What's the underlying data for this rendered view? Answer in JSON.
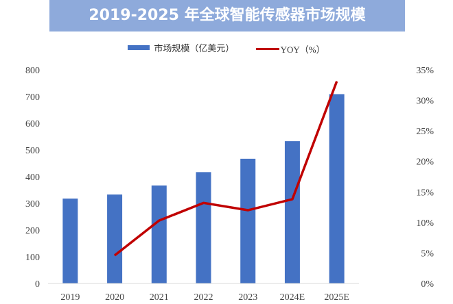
{
  "chart_data": {
    "type": "bar+line",
    "title": "2019-2025 年全球智能传感器市场规模",
    "categories": [
      "2019",
      "2020",
      "2021",
      "2022",
      "2023",
      "2024E",
      "2025E"
    ],
    "series": [
      {
        "name": "市场规模（亿美元）",
        "type": "bar",
        "axis": "left",
        "color": "#4472c4",
        "values": [
          318,
          333,
          367,
          417,
          467,
          533,
          709
        ]
      },
      {
        "name": "YOY（%）",
        "type": "line",
        "axis": "right",
        "color": "#c00000",
        "values": [
          null,
          4.6,
          10.3,
          13.2,
          12.0,
          13.8,
          33.1
        ]
      }
    ],
    "y_left": {
      "range": [
        0,
        800
      ],
      "ticks": [
        "0",
        "100",
        "200",
        "300",
        "400",
        "500",
        "600",
        "700",
        "800"
      ]
    },
    "y_right": {
      "range": [
        0,
        35
      ],
      "ticks": [
        "0%",
        "5%",
        "10%",
        "15%",
        "20%",
        "25%",
        "30%",
        "35%"
      ]
    },
    "grid": false,
    "legend": "top"
  }
}
